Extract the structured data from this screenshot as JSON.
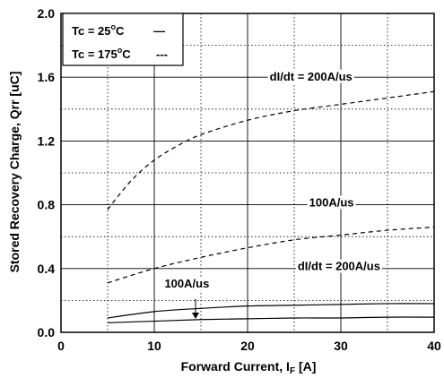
{
  "chart_data": {
    "type": "line",
    "xlabel": "Forward Current, I",
    "xlabel_sub": "F",
    "xlabel_suffix": " [A]",
    "ylabel": "Stored Recovery Charge, Qrr [uC]",
    "xlim": [
      0,
      40
    ],
    "ylim": [
      0,
      2.0
    ],
    "x_ticks": [
      "0",
      "10",
      "20",
      "30",
      "40"
    ],
    "y_ticks": [
      "0.0",
      "0.4",
      "0.8",
      "1.2",
      "1.6",
      "2.0"
    ],
    "grid": true,
    "legend": {
      "placement": "top-left",
      "entries": [
        {
          "name_main": "Tc = 25",
          "name_sup": "o",
          "name_end": "C",
          "marker": "—"
        },
        {
          "name_main": "Tc = 175",
          "name_sup": "o",
          "name_end": "C",
          "marker": "---"
        }
      ]
    },
    "series": [
      {
        "style": "dashed",
        "x": [
          5,
          7.5,
          10,
          12.5,
          15,
          20,
          25,
          30,
          35,
          40
        ],
        "y": [
          0.77,
          0.95,
          1.08,
          1.17,
          1.24,
          1.33,
          1.39,
          1.43,
          1.47,
          1.51
        ]
      },
      {
        "style": "dashed",
        "x": [
          5,
          10,
          15,
          20,
          25,
          30,
          35,
          40
        ],
        "y": [
          0.31,
          0.4,
          0.47,
          0.53,
          0.58,
          0.61,
          0.64,
          0.66
        ]
      },
      {
        "style": "solid",
        "x": [
          5,
          10,
          15,
          20,
          25,
          30,
          35,
          40
        ],
        "y": [
          0.09,
          0.13,
          0.15,
          0.165,
          0.17,
          0.175,
          0.18,
          0.18
        ]
      },
      {
        "style": "solid",
        "x": [
          5,
          10,
          15,
          20,
          25,
          30,
          35,
          40
        ],
        "y": [
          0.06,
          0.07,
          0.08,
          0.085,
          0.09,
          0.09,
          0.095,
          0.095
        ]
      }
    ],
    "annotations": [
      {
        "text": "dI/dt = 200A/us",
        "x": 26.8,
        "y": 1.58
      },
      {
        "text": "100A/us",
        "x": 29,
        "y": 0.79
      },
      {
        "text": "dI/dt = 200A/us",
        "x": 29.8,
        "y": 0.39
      },
      {
        "text": "100A/us",
        "x": 13.5,
        "y": 0.28
      }
    ]
  }
}
